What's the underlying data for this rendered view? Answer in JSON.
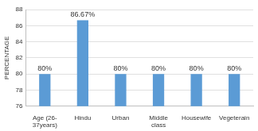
{
  "chart_data": {
    "type": "bar",
    "y_label": "PERCENTAGE",
    "categories": [
      "Age (26-37years)",
      "Hindu",
      "Urban",
      "Middle class",
      "Housewife",
      "Vegeterain"
    ],
    "values": [
      80,
      86.67,
      80,
      80,
      80,
      80
    ],
    "value_labels": [
      "80%",
      "86.67%",
      "80%",
      "80%",
      "80%",
      "80%"
    ],
    "data_labels": true,
    "color": "#5b9bd5",
    "ylim": [
      76,
      88
    ],
    "yticks": [
      76,
      78,
      80,
      82,
      84,
      86,
      88
    ],
    "grid": true
  }
}
